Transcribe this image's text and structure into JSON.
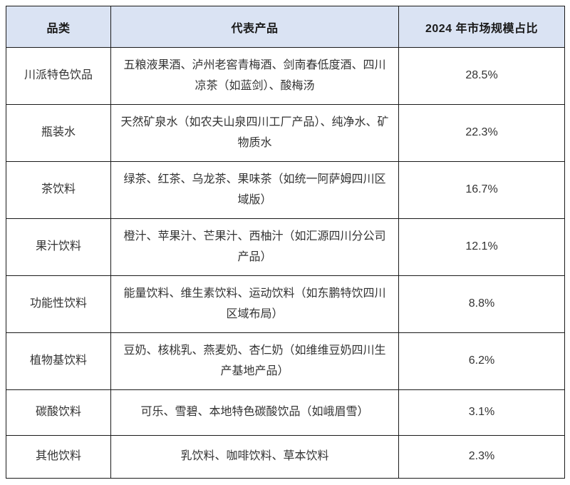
{
  "colors": {
    "header_bg": "#dae3f3",
    "border": "#1a1a1a",
    "header_text": "#1a1a1a",
    "body_text": "#333333",
    "page_bg": "#ffffff"
  },
  "table": {
    "headers": [
      "品类",
      "代表产品",
      "2024 年市场规模占比"
    ],
    "rows": [
      {
        "category": "川派特色饮品",
        "products": "五粮液果酒、泸州老窖青梅酒、剑南春低度酒、四川凉茶（如蓝剑）、酸梅汤",
        "share": "28.5%"
      },
      {
        "category": "瓶装水",
        "products": "天然矿泉水（如农夫山泉四川工厂产品）、纯净水、矿物质水",
        "share": "22.3%"
      },
      {
        "category": "茶饮料",
        "products": "绿茶、红茶、乌龙茶、果味茶（如统一阿萨姆四川区域版）",
        "share": "16.7%"
      },
      {
        "category": "果汁饮料",
        "products": "橙汁、苹果汁、芒果汁、西柚汁（如汇源四川分公司产品）",
        "share": "12.1%"
      },
      {
        "category": "功能性饮料",
        "products": "能量饮料、维生素饮料、运动饮料（如东鹏特饮四川区域布局）",
        "share": "8.8%"
      },
      {
        "category": "植物基饮料",
        "products": "豆奶、核桃乳、燕麦奶、杏仁奶（如维维豆奶四川生产基地产品）",
        "share": "6.2%"
      },
      {
        "category": "碳酸饮料",
        "products": "可乐、雪碧、本地特色碳酸饮品（如峨眉雪）",
        "share": "3.1%"
      },
      {
        "category": "其他饮料",
        "products": "乳饮料、咖啡饮料、草本饮料",
        "share": "2.3%"
      }
    ]
  }
}
